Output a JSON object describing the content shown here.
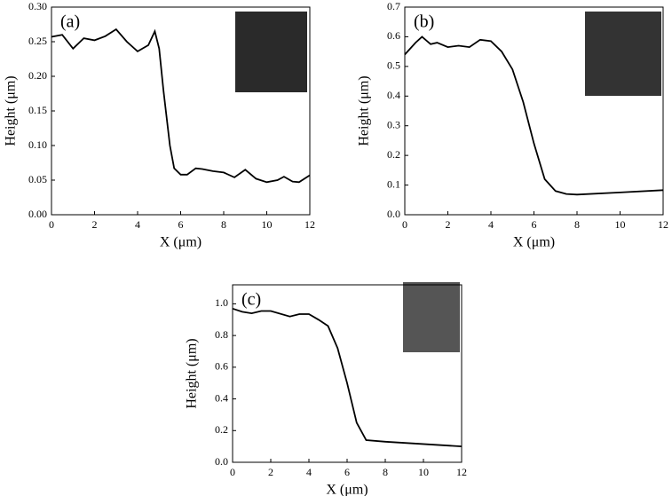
{
  "chart_data": [
    {
      "type": "line",
      "panel_label": "(a)",
      "x_label": "X (μm)",
      "y_label": "Height (μm)",
      "xlim": [
        0,
        12
      ],
      "xticks": [
        0,
        2,
        4,
        6,
        8,
        10,
        12
      ],
      "ylim": [
        0,
        0.3
      ],
      "yticks": [
        {
          "value": 0,
          "label": "0.00"
        },
        0.05,
        {
          "value": 0.1,
          "label": "0.10"
        },
        0.15,
        {
          "value": 0.2,
          "label": "0.20"
        },
        0.25,
        {
          "value": 0.3,
          "label": "0.30"
        }
      ],
      "color": "#000000",
      "x": [
        0,
        0.5,
        1,
        1.5,
        2,
        2.5,
        3,
        3.5,
        4,
        4.5,
        4.8,
        5,
        5.2,
        5.5,
        5.7,
        6,
        6.3,
        6.7,
        7,
        7.5,
        8,
        8.5,
        9,
        9.5,
        10,
        10.5,
        10.8,
        11.2,
        11.5,
        12
      ],
      "values": [
        0.257,
        0.26,
        0.24,
        0.255,
        0.252,
        0.258,
        0.268,
        0.25,
        0.236,
        0.245,
        0.265,
        0.24,
        0.18,
        0.1,
        0.067,
        0.058,
        0.058,
        0.067,
        0.066,
        0.063,
        0.061,
        0.054,
        0.065,
        0.052,
        0.047,
        0.05,
        0.055,
        0.048,
        0.047,
        0.057
      ]
    },
    {
      "type": "line",
      "panel_label": "(b)",
      "x_label": "X (μm)",
      "y_label": "Height (μm)",
      "xlim": [
        0,
        12
      ],
      "xticks": [
        0,
        2,
        4,
        6,
        8,
        10,
        12
      ],
      "ylim": [
        0,
        0.7
      ],
      "yticks": [
        {
          "value": 0,
          "label": "0.0"
        },
        0.1,
        0.2,
        0.3,
        0.4,
        0.5,
        0.6,
        0.7
      ],
      "color": "#000000",
      "x": [
        0,
        0.5,
        0.8,
        1.2,
        1.5,
        2,
        2.5,
        3,
        3.5,
        4,
        4.5,
        5,
        5.5,
        6,
        6.5,
        7,
        7.5,
        8,
        10,
        12
      ],
      "values": [
        0.54,
        0.58,
        0.6,
        0.575,
        0.58,
        0.565,
        0.57,
        0.565,
        0.59,
        0.585,
        0.55,
        0.49,
        0.38,
        0.24,
        0.12,
        0.08,
        0.07,
        0.068,
        0.075,
        0.083
      ]
    },
    {
      "type": "line",
      "panel_label": "(c)",
      "x_label": "X (μm)",
      "y_label": "Height (μm)",
      "xlim": [
        0,
        12
      ],
      "xticks": [
        0,
        2,
        4,
        6,
        8,
        10,
        12
      ],
      "ylim": [
        0,
        1.12
      ],
      "yticks": [
        {
          "value": 0,
          "label": "0.0"
        },
        0.2,
        0.4,
        0.6,
        0.8,
        {
          "value": 1,
          "label": "1.0"
        }
      ],
      "color": "#000000",
      "x": [
        0,
        0.5,
        1,
        1.5,
        2,
        3,
        3.5,
        4,
        4.5,
        5,
        5.5,
        6,
        6.5,
        7,
        8,
        12
      ],
      "values": [
        0.97,
        0.95,
        0.94,
        0.955,
        0.955,
        0.92,
        0.935,
        0.935,
        0.9,
        0.86,
        0.72,
        0.5,
        0.25,
        0.14,
        0.13,
        0.1
      ]
    }
  ]
}
